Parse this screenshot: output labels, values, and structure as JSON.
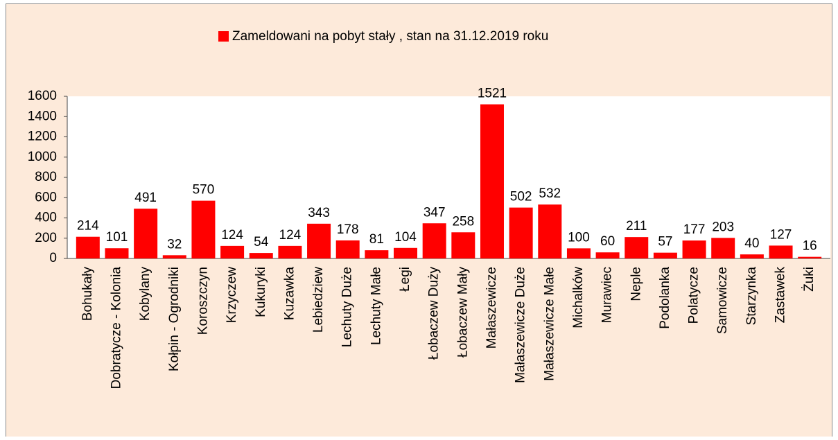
{
  "chart_data": {
    "type": "bar",
    "categories": [
      "Bohukały",
      "Dobratycze - Kolonia",
      "Kobylany",
      "Kołpin - Ogrodniki",
      "Koroszczyn",
      "Krzyczew",
      "Kukuryki",
      "Kuzawka",
      "Lebiedziew",
      "Lechuty Duże",
      "Lechuty Małe",
      "Łegi",
      "Łobaczew Duży",
      "Łobaczew Mały",
      "Małaszewicze",
      "Małaszewicze Duże",
      "Małaszewicze Małe",
      "Michalków",
      "Murawiec",
      "Neple",
      "Podolanka",
      "Polatycze",
      "Samowicze",
      "Starzynka",
      "Zastawek",
      "Żuki"
    ],
    "series": [
      {
        "name": "Zameldowani na pobyt stały , stan na 31.12.2019 roku",
        "color": "#ff0000",
        "values": [
          214,
          101,
          491,
          32,
          570,
          124,
          54,
          124,
          343,
          178,
          81,
          104,
          347,
          258,
          1521,
          502,
          532,
          100,
          60,
          211,
          57,
          177,
          203,
          40,
          127,
          16
        ]
      }
    ],
    "ylim": [
      0,
      1600
    ],
    "yticks": [
      0,
      200,
      400,
      600,
      800,
      1000,
      1200,
      1400,
      1600
    ],
    "grid": false,
    "legend": "top"
  }
}
